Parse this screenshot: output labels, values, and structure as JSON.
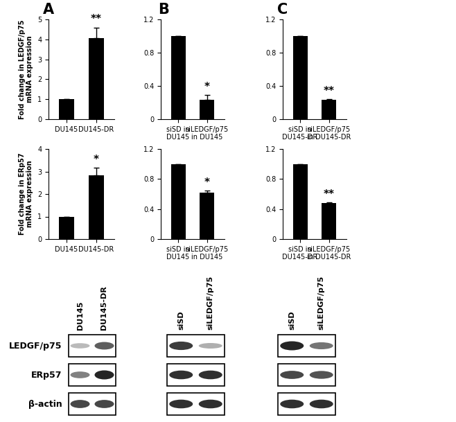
{
  "panel_labels": [
    "A",
    "B",
    "C"
  ],
  "chart_data": [
    {
      "type": "bar",
      "panel": "A",
      "y_label": "Fold change in LEDGF/p75 mRNA expression",
      "categories": [
        "DU145",
        "DU145-DR"
      ],
      "values": [
        1,
        4.05
      ],
      "errors": [
        0,
        0.55
      ],
      "significance": [
        null,
        "**"
      ],
      "color": "#000000",
      "ylim": [
        0,
        5
      ],
      "yticks": [
        0,
        1,
        2,
        3,
        4,
        5
      ]
    },
    {
      "type": "bar",
      "panel": "A",
      "y_label": "Fold change in ERp57 mRNA expression",
      "categories": [
        "DU145",
        "DU145-DR"
      ],
      "values": [
        1,
        2.82
      ],
      "errors": [
        0,
        0.35
      ],
      "significance": [
        null,
        "*"
      ],
      "color": "#000000",
      "ylim": [
        0,
        4
      ],
      "yticks": [
        0,
        1,
        2,
        3,
        4
      ]
    },
    {
      "type": "bar",
      "panel": "B",
      "categories": [
        "siSD in DU145",
        "siLEDGF/p75 in DU145"
      ],
      "values": [
        1,
        0.23
      ],
      "errors": [
        0,
        0.06
      ],
      "significance": [
        null,
        "*"
      ],
      "color": "#000000",
      "ylim": [
        0,
        1.2
      ],
      "yticks": [
        0,
        0.4,
        0.8,
        1.2
      ]
    },
    {
      "type": "bar",
      "panel": "B",
      "categories": [
        "siSD in DU145",
        "siLEDGF/p75 in DU145"
      ],
      "values": [
        1,
        0.62
      ],
      "errors": [
        0,
        0.03
      ],
      "significance": [
        null,
        "*"
      ],
      "color": "#000000",
      "ylim": [
        0,
        1.2
      ],
      "yticks": [
        0,
        0.4,
        0.8,
        1.2
      ]
    },
    {
      "type": "bar",
      "panel": "C",
      "categories": [
        "siSD in DU145-DR",
        "siLEDGF/p75 in DU145-DR"
      ],
      "values": [
        1,
        0.23
      ],
      "errors": [
        0,
        0.01
      ],
      "significance": [
        null,
        "**"
      ],
      "color": "#000000",
      "ylim": [
        0,
        1.2
      ],
      "yticks": [
        0,
        0.4,
        0.8,
        1.2
      ]
    },
    {
      "type": "bar",
      "panel": "C",
      "categories": [
        "siSD in DU145-DR",
        "siLEDGF/p75 in DU145-DR"
      ],
      "values": [
        1,
        0.48
      ],
      "errors": [
        0,
        0.01
      ],
      "significance": [
        null,
        "**"
      ],
      "color": "#000000",
      "ylim": [
        0,
        1.2
      ],
      "yticks": [
        0,
        0.4,
        0.8,
        1.2
      ]
    }
  ],
  "blots": {
    "row_labels": [
      "LEDGF/p75",
      "ERp57",
      "β-actin"
    ],
    "panels": [
      {
        "panel": "A",
        "lanes": [
          "DU145",
          "DU145-DR"
        ],
        "band_intensity": [
          [
            0.3,
            0.7
          ],
          [
            0.55,
            0.95
          ],
          [
            0.8,
            0.8
          ]
        ]
      },
      {
        "panel": "B",
        "lanes": [
          "siSD",
          "siLEDGF/p75"
        ],
        "band_intensity": [
          [
            0.85,
            0.35
          ],
          [
            0.9,
            0.9
          ],
          [
            0.9,
            0.9
          ]
        ]
      },
      {
        "panel": "C",
        "lanes": [
          "siSD",
          "siLEDGF/p75"
        ],
        "band_intensity": [
          [
            0.95,
            0.6
          ],
          [
            0.8,
            0.75
          ],
          [
            0.9,
            0.9
          ]
        ]
      }
    ]
  }
}
